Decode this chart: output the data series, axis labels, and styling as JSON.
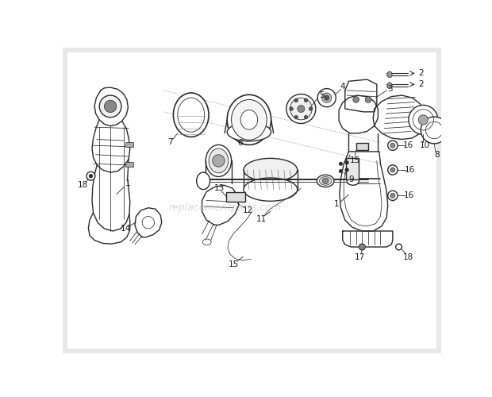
{
  "bg_color": "#ffffff",
  "border_color": "#e8e8e8",
  "line_color": "#2a2a2a",
  "label_color": "#1a1a1a",
  "watermark": "replacementparts.com",
  "watermark_color": "#c8c8c8",
  "fig_width": 6.2,
  "fig_height": 5.0,
  "dpi": 100
}
